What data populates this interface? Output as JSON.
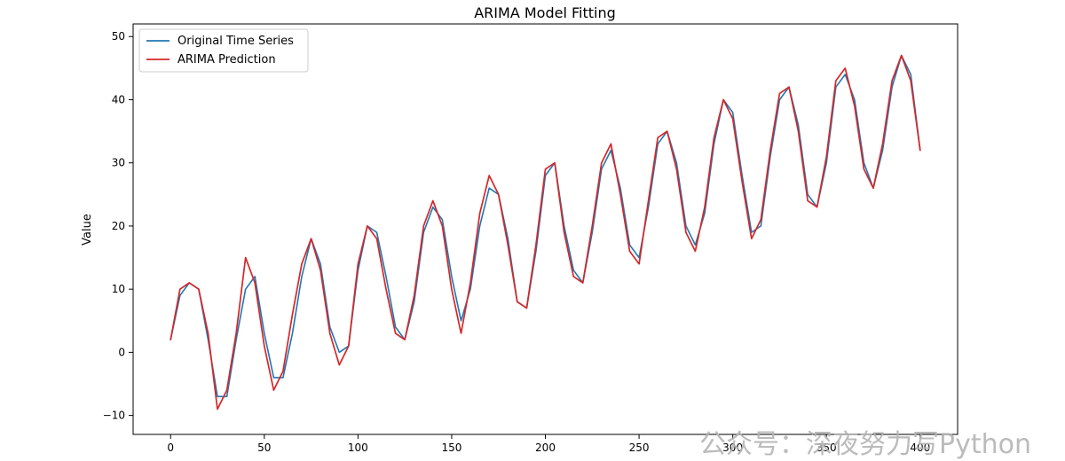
{
  "chart_data": {
    "type": "line",
    "title": "ARIMA Model Fitting",
    "xlabel": "",
    "ylabel": "Value",
    "xlim": [
      -20,
      420
    ],
    "ylim": [
      -13,
      52
    ],
    "x_ticks": [
      0,
      50,
      100,
      150,
      200,
      250,
      300,
      350,
      400
    ],
    "y_ticks": [
      -10,
      0,
      10,
      20,
      30,
      40,
      50
    ],
    "grid": false,
    "legend_position": "upper left",
    "x": [
      0,
      5,
      10,
      15,
      20,
      25,
      30,
      35,
      40,
      45,
      50,
      55,
      60,
      65,
      70,
      75,
      80,
      85,
      90,
      95,
      100,
      105,
      110,
      115,
      120,
      125,
      130,
      135,
      140,
      145,
      150,
      155,
      160,
      165,
      170,
      175,
      180,
      185,
      190,
      195,
      200,
      205,
      210,
      215,
      220,
      225,
      230,
      235,
      240,
      245,
      250,
      255,
      260,
      265,
      270,
      275,
      280,
      285,
      290,
      295,
      300,
      305,
      310,
      315,
      320,
      325,
      330,
      335,
      340,
      345,
      350,
      355,
      360,
      365,
      370,
      375,
      380,
      385,
      390,
      395,
      400
    ],
    "series": [
      {
        "name": "Original Time Series",
        "color": "#1f77b4",
        "values": [
          2,
          9,
          11,
          10,
          2,
          -7,
          -7,
          2,
          10,
          12,
          3,
          -4,
          -4,
          3,
          12,
          18,
          14,
          4,
          0,
          1,
          13,
          20,
          19,
          12,
          4,
          2,
          8,
          19,
          23,
          21,
          12,
          5,
          10,
          20,
          26,
          25,
          18,
          8,
          7,
          16,
          28,
          30,
          20,
          13,
          11,
          19,
          29,
          32,
          26,
          17,
          15,
          23,
          33,
          35,
          30,
          20,
          17,
          22,
          33,
          40,
          38,
          28,
          19,
          20,
          31,
          40,
          42,
          36,
          25,
          23,
          30,
          42,
          44,
          40,
          30,
          26,
          32,
          42,
          47,
          44,
          32
        ]
      },
      {
        "name": "ARIMA Prediction",
        "color": "#d62728",
        "values": [
          2,
          10,
          11,
          10,
          3,
          -9,
          -6,
          3,
          15,
          11,
          1,
          -6,
          -3,
          6,
          14,
          18,
          13,
          3,
          -2,
          1,
          14,
          20,
          18,
          10,
          3,
          2,
          9,
          20,
          24,
          20,
          10,
          3,
          11,
          22,
          28,
          25,
          17,
          8,
          7,
          17,
          29,
          30,
          19,
          12,
          11,
          20,
          30,
          33,
          25,
          16,
          14,
          24,
          34,
          35,
          29,
          19,
          16,
          23,
          34,
          40,
          37,
          27,
          18,
          21,
          32,
          41,
          42,
          35,
          24,
          23,
          31,
          43,
          45,
          39,
          29,
          26,
          33,
          43,
          47,
          43,
          32
        ]
      }
    ]
  },
  "watermark": {
    "text": "公众号：深夜努力写Python"
  }
}
